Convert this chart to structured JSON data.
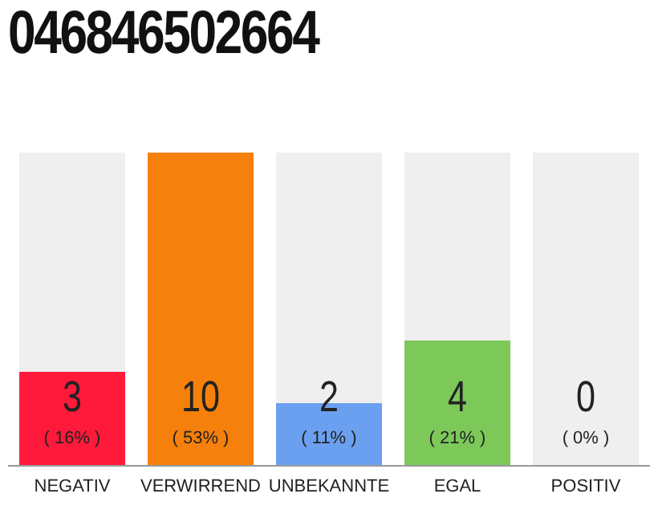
{
  "chart_data": {
    "type": "bar",
    "title": "046846502664",
    "categories": [
      "NEGATIV",
      "VERWIRREND",
      "UNBEKANNTE",
      "EGAL",
      "POSITIV"
    ],
    "values": [
      3,
      10,
      2,
      4,
      0
    ],
    "colors": [
      "#ff1a3c",
      "#f5800b",
      "#6b9ff0",
      "#7cc95a",
      "#efefef"
    ],
    "data_labels": true,
    "annotations": [
      "( 16% )",
      "( 53% )",
      "( 11% )",
      "( 21% )",
      "( 0% )"
    ]
  }
}
